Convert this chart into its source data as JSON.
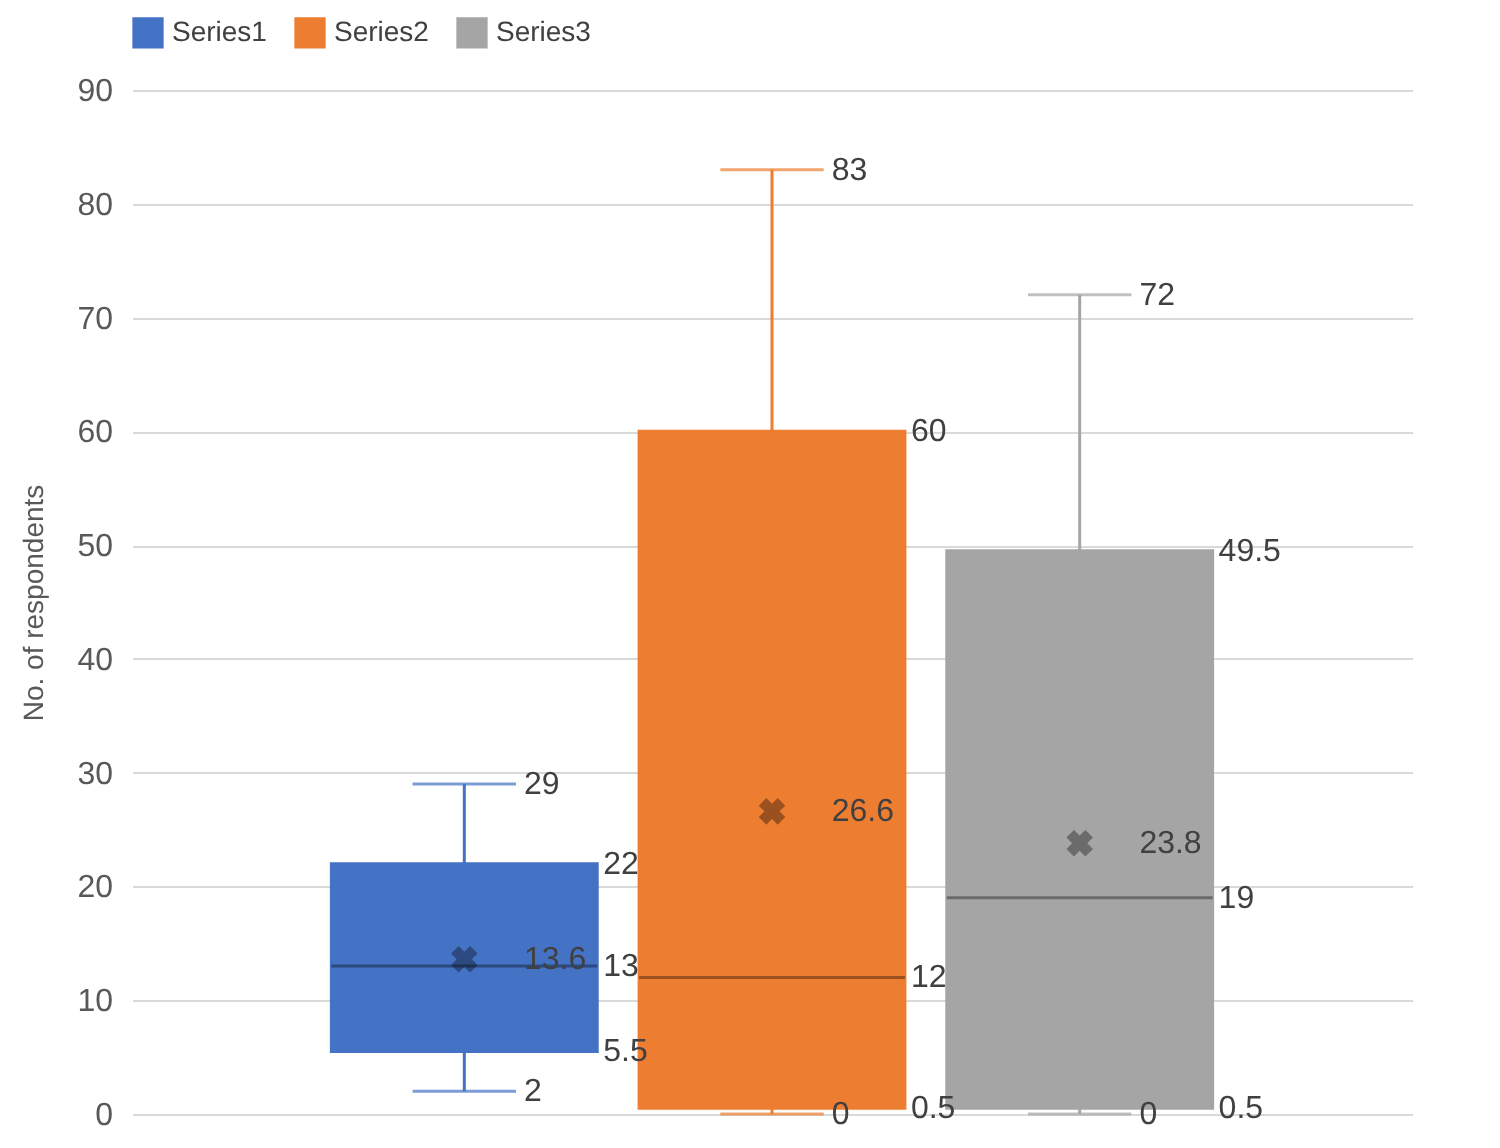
{
  "chart_data": {
    "type": "box",
    "ylabel": "No. of respondents",
    "categories": [
      null
    ],
    "series": [
      {
        "name": "Series1",
        "color": "#4472c4",
        "boxes": [
          {
            "low": 2,
            "q1": 5.5,
            "median": 13,
            "q3": 22,
            "high": 29,
            "mean": 13.6
          }
        ]
      },
      {
        "name": "Series2",
        "color": "#ed7d31",
        "boxes": [
          {
            "low": 0,
            "q1": 0.5,
            "median": 12,
            "q3": 60,
            "high": 83,
            "mean": 26.6
          }
        ]
      },
      {
        "name": "Series3",
        "color": "#a5a5a5",
        "boxes": [
          {
            "low": 0,
            "q1": 0.5,
            "median": 19,
            "q3": 49.5,
            "high": 72,
            "mean": 23.8
          }
        ]
      }
    ],
    "annotations": [
      "2",
      "5.5",
      "13",
      "22",
      "29",
      "13.6",
      "0",
      "0.5",
      "12",
      "60",
      "83",
      "26.6",
      "0",
      "0.5",
      "19",
      "49.5",
      "72",
      "23.8"
    ],
    "ylim": [
      0,
      90
    ],
    "yticks": [
      0,
      10,
      20,
      30,
      40,
      50,
      60,
      70,
      80,
      90
    ],
    "grid": "y",
    "legend": "top"
  }
}
